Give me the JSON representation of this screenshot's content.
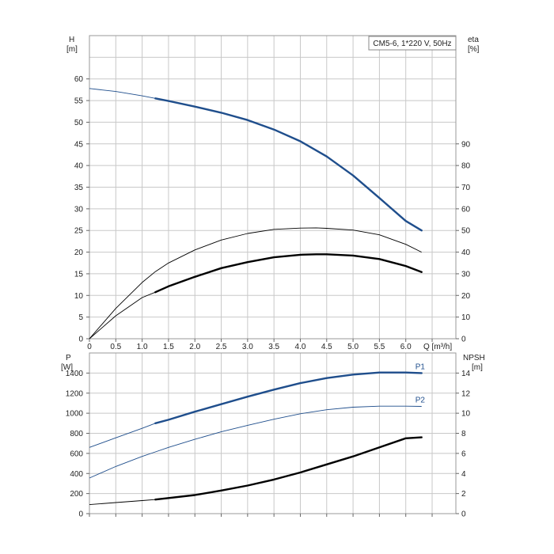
{
  "chart_data": [
    {
      "type": "line",
      "title": "CM5-6, 1*220 V, 50Hz",
      "xlabel": "Q [m³/h]",
      "ylabel": "H",
      "ylabel_unit": "[m]",
      "y2label": "eta",
      "y2label_unit": "[%]",
      "xlim": [
        0,
        6.95
      ],
      "ylim": [
        0,
        70
      ],
      "y2lim": [
        0,
        140
      ],
      "xticks": [
        "0",
        "0.5",
        "1.0",
        "1.5",
        "2.0",
        "2.5",
        "3.0",
        "3.5",
        "4.0",
        "4.5",
        "5.0",
        "5.5",
        "6.0"
      ],
      "yticks": [
        "0",
        "5",
        "10",
        "15",
        "20",
        "25",
        "30",
        "35",
        "40",
        "45",
        "50",
        "55",
        "60"
      ],
      "y2ticks": [
        "0",
        "10",
        "20",
        "30",
        "40",
        "50",
        "60",
        "70",
        "80",
        "90"
      ],
      "grid": true,
      "series": [
        {
          "axis": "left",
          "color": "#1f4e8c",
          "bold_from": 1.25,
          "x": [
            0,
            0.5,
            1.0,
            1.25,
            1.5,
            2.0,
            2.5,
            3.0,
            3.5,
            4.0,
            4.5,
            5.0,
            5.5,
            6.0,
            6.3
          ],
          "y": [
            57.8,
            57.1,
            56.1,
            55.5,
            54.9,
            53.6,
            52.2,
            50.5,
            48.3,
            45.6,
            42.1,
            37.7,
            32.5,
            27.2,
            25.0
          ]
        },
        {
          "axis": "right",
          "color": "#000000",
          "bold_from": 99,
          "x": [
            0,
            0.5,
            1.0,
            1.25,
            1.5,
            2.0,
            2.5,
            3.0,
            3.5,
            4.0,
            4.3,
            4.5,
            5.0,
            5.5,
            6.0,
            6.3
          ],
          "y": [
            0,
            14.0,
            26.0,
            31.0,
            35.0,
            41.0,
            45.6,
            48.6,
            50.5,
            51.1,
            51.2,
            51.0,
            50.2,
            48.0,
            43.6,
            40.0
          ]
        },
        {
          "axis": "right",
          "color": "#000000",
          "bold_from": 1.25,
          "x": [
            0,
            0.5,
            1.0,
            1.25,
            1.5,
            2.0,
            2.5,
            3.0,
            3.5,
            4.0,
            4.3,
            4.5,
            5.0,
            5.5,
            6.0,
            6.3
          ],
          "y": [
            0,
            10.6,
            19.0,
            21.5,
            24.2,
            28.6,
            32.6,
            35.4,
            37.6,
            38.8,
            39.0,
            39.0,
            38.4,
            36.8,
            33.6,
            30.8
          ]
        }
      ]
    },
    {
      "type": "line",
      "xlabel": "",
      "ylabel": "P",
      "ylabel_unit": "[W]",
      "y2label": "NPSH",
      "y2label_unit": "[m]",
      "xlim": [
        0,
        6.95
      ],
      "ylim": [
        0,
        1600
      ],
      "y2lim": [
        0,
        16
      ],
      "yticks": [
        "0",
        "200",
        "400",
        "600",
        "800",
        "1000",
        "1200",
        "1400"
      ],
      "y2ticks": [
        "0",
        "2",
        "4",
        "6",
        "8",
        "10",
        "12",
        "14"
      ],
      "grid": true,
      "series": [
        {
          "name": "P1",
          "axis": "left",
          "color": "#1f4e8c",
          "bold_from": 1.25,
          "x": [
            0,
            0.5,
            1.0,
            1.25,
            1.5,
            2.0,
            2.5,
            3.0,
            3.5,
            4.0,
            4.5,
            5.0,
            5.5,
            6.0,
            6.3
          ],
          "y": [
            660,
            755,
            850,
            900,
            935,
            1015,
            1090,
            1165,
            1235,
            1300,
            1350,
            1385,
            1405,
            1405,
            1400
          ]
        },
        {
          "name": "P2",
          "axis": "left",
          "color": "#1f4e8c",
          "bold_from": 99,
          "x": [
            0,
            0.5,
            1.0,
            1.25,
            1.5,
            2.0,
            2.5,
            3.0,
            3.5,
            4.0,
            4.5,
            5.0,
            5.5,
            6.0,
            6.3
          ],
          "y": [
            355,
            470,
            570,
            615,
            660,
            740,
            815,
            880,
            940,
            995,
            1035,
            1060,
            1070,
            1070,
            1068
          ]
        },
        {
          "axis": "right",
          "color": "#000000",
          "bold_from": 1.25,
          "x": [
            0,
            0.5,
            1.0,
            1.25,
            1.5,
            2.0,
            2.5,
            3.0,
            3.5,
            4.0,
            4.5,
            5.0,
            5.5,
            6.0,
            6.3
          ],
          "y": [
            0.9,
            1.1,
            1.3,
            1.4,
            1.55,
            1.85,
            2.3,
            2.8,
            3.4,
            4.1,
            4.9,
            5.7,
            6.6,
            7.5,
            7.6
          ]
        }
      ]
    }
  ]
}
